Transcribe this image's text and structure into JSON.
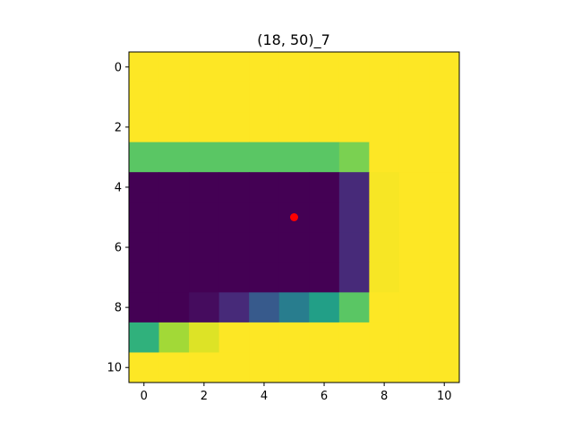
{
  "chart_data": {
    "type": "heatmap",
    "title": "(18, 50)_7",
    "xlabel": "",
    "ylabel": "",
    "colormap": "viridis",
    "vmin": 0,
    "vmax": 1,
    "rows": 11,
    "cols": 11,
    "xlim": [
      -0.5,
      10.5
    ],
    "ylim": [
      10.5,
      -0.5
    ],
    "x_ticks": [
      0,
      2,
      4,
      6,
      8,
      10
    ],
    "y_ticks": [
      0,
      2,
      4,
      6,
      8,
      10
    ],
    "x_tick_labels": [
      "0",
      "2",
      "4",
      "6",
      "8",
      "10"
    ],
    "y_tick_labels": [
      "0",
      "2",
      "4",
      "6",
      "8",
      "10"
    ],
    "grid": false,
    "values": [
      [
        1.0,
        1.0,
        1.0,
        1.0,
        1.0,
        1.0,
        1.0,
        1.0,
        1.0,
        1.0,
        1.0
      ],
      [
        1.0,
        1.0,
        1.0,
        1.0,
        1.0,
        1.0,
        1.0,
        1.0,
        1.0,
        1.0,
        1.0
      ],
      [
        1.0,
        1.0,
        1.0,
        1.0,
        1.0,
        1.0,
        1.0,
        1.0,
        1.0,
        1.0,
        1.0
      ],
      [
        0.74,
        0.74,
        0.74,
        0.74,
        0.74,
        0.74,
        0.74,
        0.8,
        1.0,
        1.0,
        1.0
      ],
      [
        0.0,
        0.0,
        0.0,
        0.0,
        0.0,
        0.0,
        0.0,
        0.12,
        0.99,
        1.0,
        1.0
      ],
      [
        0.0,
        0.0,
        0.0,
        0.0,
        0.0,
        0.0,
        0.0,
        0.12,
        0.99,
        1.0,
        1.0
      ],
      [
        0.0,
        0.0,
        0.0,
        0.0,
        0.0,
        0.0,
        0.0,
        0.12,
        0.99,
        1.0,
        1.0
      ],
      [
        0.0,
        0.0,
        0.0,
        0.0,
        0.0,
        0.0,
        0.0,
        0.12,
        0.99,
        1.0,
        1.0
      ],
      [
        0.0,
        0.0,
        0.03,
        0.12,
        0.28,
        0.42,
        0.56,
        0.74,
        1.0,
        1.0,
        1.0
      ],
      [
        0.64,
        0.86,
        0.95,
        1.0,
        1.0,
        1.0,
        1.0,
        1.0,
        1.0,
        1.0,
        1.0
      ],
      [
        1.0,
        1.0,
        1.0,
        1.0,
        1.0,
        1.0,
        1.0,
        1.0,
        1.0,
        1.0,
        1.0
      ]
    ],
    "marker": {
      "x": 5,
      "y": 5,
      "color": "#ff0000",
      "shape": "circle"
    },
    "colors": {
      "marker": "#ff0000",
      "axes": "#000000",
      "background": "#ffffff"
    }
  }
}
